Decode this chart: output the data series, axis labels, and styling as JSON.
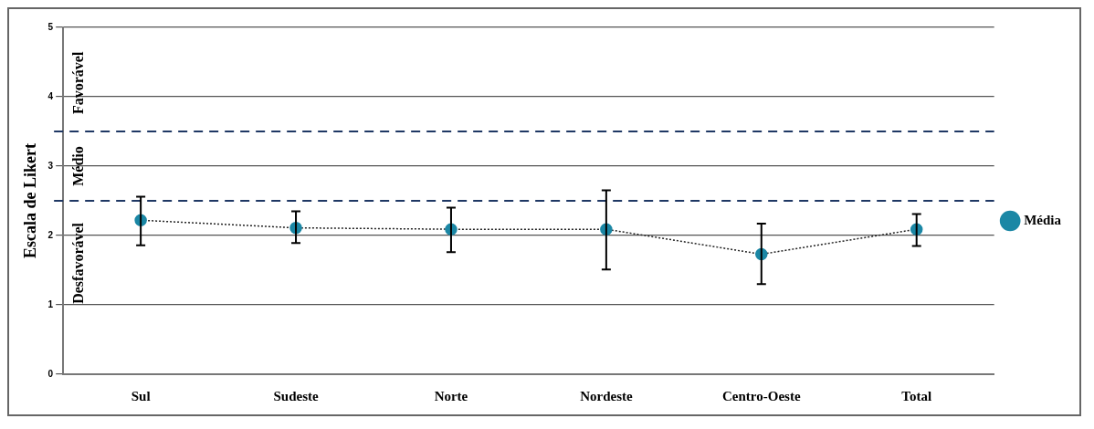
{
  "chart_data": {
    "type": "line",
    "ylabel": "Escala de Likert",
    "categories": [
      "Sul",
      "Sudeste",
      "Norte",
      "Nordeste",
      "Centro-Oeste",
      "Total"
    ],
    "series": [
      {
        "name": "Média",
        "color": "#1b87a5",
        "values": [
          2.22,
          2.11,
          2.09,
          2.09,
          1.73,
          2.09
        ],
        "errors": [
          [
            1.86,
            2.56
          ],
          [
            1.89,
            2.35
          ],
          [
            1.76,
            2.4
          ],
          [
            1.51,
            2.65
          ],
          [
            1.3,
            2.17
          ],
          [
            1.85,
            2.31
          ]
        ]
      }
    ],
    "ylim": [
      0,
      5
    ],
    "yticks": [
      0,
      1,
      2,
      3,
      4,
      5
    ],
    "grid": "y",
    "legend": "right",
    "marker": "circle",
    "line_style": "dotted",
    "ref_lines": [
      {
        "axis": "y",
        "value": 2.5,
        "color": "#1f3864",
        "line_style": "dashed"
      },
      {
        "axis": "y",
        "value": 3.5,
        "color": "#1f3864",
        "line_style": "dashed"
      }
    ],
    "annotations": [
      "Favorável",
      "Médio",
      "Desfavorável"
    ]
  }
}
